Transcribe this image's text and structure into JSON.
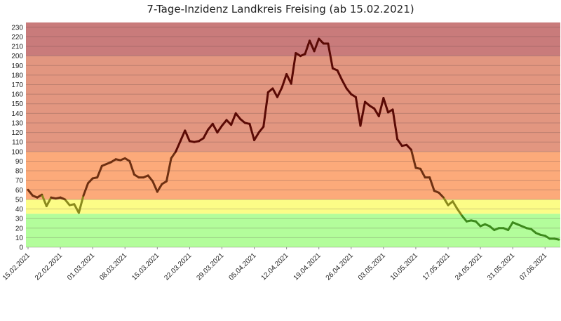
{
  "chart_data": {
    "type": "line",
    "title": "7-Tage-Inzidenz Landkreis Freising (ab 15.02.2021)",
    "xlabel": "",
    "ylabel": "",
    "ylim": [
      0,
      235
    ],
    "y_ticks": [
      0,
      10,
      20,
      30,
      40,
      50,
      60,
      70,
      80,
      90,
      100,
      110,
      120,
      130,
      140,
      150,
      160,
      170,
      180,
      190,
      200,
      210,
      220,
      230
    ],
    "x_tick_labels": [
      "15.02.2021",
      "22.02.2021",
      "01.03.2021",
      "08.03.2021",
      "15.03.2021",
      "22.03.2021",
      "29.03.2021",
      "05.04.2021",
      "12.04.2021",
      "19.04.2021",
      "26.04.2021",
      "03.05.2021",
      "10.05.2021",
      "17.05.2021",
      "24.05.2021",
      "31.05.2021",
      "07.06.2021"
    ],
    "grid": true,
    "bands": [
      {
        "from": 0,
        "to": 35,
        "color": "#b3fd9b"
      },
      {
        "from": 35,
        "to": 50,
        "color": "#fcfc87"
      },
      {
        "from": 50,
        "to": 100,
        "color": "#fcaa7a"
      },
      {
        "from": 100,
        "to": 200,
        "color": "#e29680"
      },
      {
        "from": 200,
        "to": 235,
        "color": "#c97b7b"
      }
    ],
    "line_colors": {
      "green": "#3d8a1c",
      "yellow": "#8a8a1c",
      "orange": "#6e3012",
      "dark": "#5a0a05"
    },
    "series": [
      {
        "name": "",
        "dates": [
          "15.02.2021",
          "16.02.2021",
          "17.02.2021",
          "18.02.2021",
          "19.02.2021",
          "20.02.2021",
          "21.02.2021",
          "22.02.2021",
          "23.02.2021",
          "24.02.2021",
          "25.02.2021",
          "26.02.2021",
          "27.02.2021",
          "28.02.2021",
          "01.03.2021",
          "02.03.2021",
          "03.03.2021",
          "04.03.2021",
          "05.03.2021",
          "06.03.2021",
          "07.03.2021",
          "08.03.2021",
          "09.03.2021",
          "10.03.2021",
          "11.03.2021",
          "12.03.2021",
          "13.03.2021",
          "14.03.2021",
          "15.03.2021",
          "16.03.2021",
          "17.03.2021",
          "18.03.2021",
          "19.03.2021",
          "20.03.2021",
          "21.03.2021",
          "22.03.2021",
          "23.03.2021",
          "24.03.2021",
          "25.03.2021",
          "26.03.2021",
          "27.03.2021",
          "28.03.2021",
          "29.03.2021",
          "30.03.2021",
          "31.03.2021",
          "01.04.2021",
          "02.04.2021",
          "03.04.2021",
          "04.04.2021",
          "05.04.2021",
          "06.04.2021",
          "07.04.2021",
          "08.04.2021",
          "09.04.2021",
          "10.04.2021",
          "11.04.2021",
          "12.04.2021",
          "13.04.2021",
          "14.04.2021",
          "15.04.2021",
          "16.04.2021",
          "17.04.2021",
          "18.04.2021",
          "19.04.2021",
          "20.04.2021",
          "21.04.2021",
          "22.04.2021",
          "23.04.2021",
          "24.04.2021",
          "25.04.2021",
          "26.04.2021",
          "27.04.2021",
          "28.04.2021",
          "29.04.2021",
          "30.04.2021",
          "01.05.2021",
          "02.05.2021",
          "03.05.2021",
          "04.05.2021",
          "05.05.2021",
          "06.05.2021",
          "07.05.2021",
          "08.05.2021",
          "09.05.2021",
          "10.05.2021",
          "11.05.2021",
          "12.05.2021",
          "13.05.2021",
          "14.05.2021",
          "15.05.2021",
          "16.05.2021",
          "17.05.2021",
          "18.05.2021",
          "19.05.2021",
          "20.05.2021",
          "21.05.2021",
          "22.05.2021",
          "23.05.2021",
          "24.05.2021",
          "25.05.2021",
          "26.05.2021",
          "27.05.2021",
          "28.05.2021",
          "29.05.2021",
          "30.05.2021",
          "31.05.2021",
          "01.06.2021",
          "02.06.2021",
          "03.06.2021",
          "04.06.2021",
          "05.06.2021",
          "06.06.2021",
          "07.06.2021",
          "08.06.2021",
          "09.06.2021",
          "10.06.2021"
        ],
        "values": [
          60,
          54,
          52,
          55,
          43,
          52,
          51,
          52,
          50,
          44,
          45,
          36,
          54,
          67,
          72,
          73,
          85,
          87,
          89,
          92,
          91,
          93,
          90,
          76,
          73,
          73,
          75,
          69,
          58,
          66,
          69,
          93,
          100,
          111,
          122,
          111,
          110,
          111,
          114,
          123,
          129,
          120,
          127,
          133,
          128,
          140,
          134,
          130,
          129,
          112,
          120,
          126,
          162,
          166,
          157,
          167,
          181,
          171,
          203,
          200,
          202,
          216,
          205,
          218,
          213,
          213,
          187,
          185,
          175,
          166,
          160,
          157,
          127,
          152,
          148,
          145,
          137,
          156,
          141,
          144,
          113,
          106,
          107,
          102,
          83,
          82,
          73,
          73,
          59,
          57,
          52,
          44,
          48,
          40,
          33,
          27,
          28,
          27,
          22,
          24,
          22,
          18,
          20,
          20,
          18,
          26,
          24,
          22,
          20,
          19,
          15,
          13,
          12,
          9,
          9,
          8
        ]
      }
    ]
  }
}
